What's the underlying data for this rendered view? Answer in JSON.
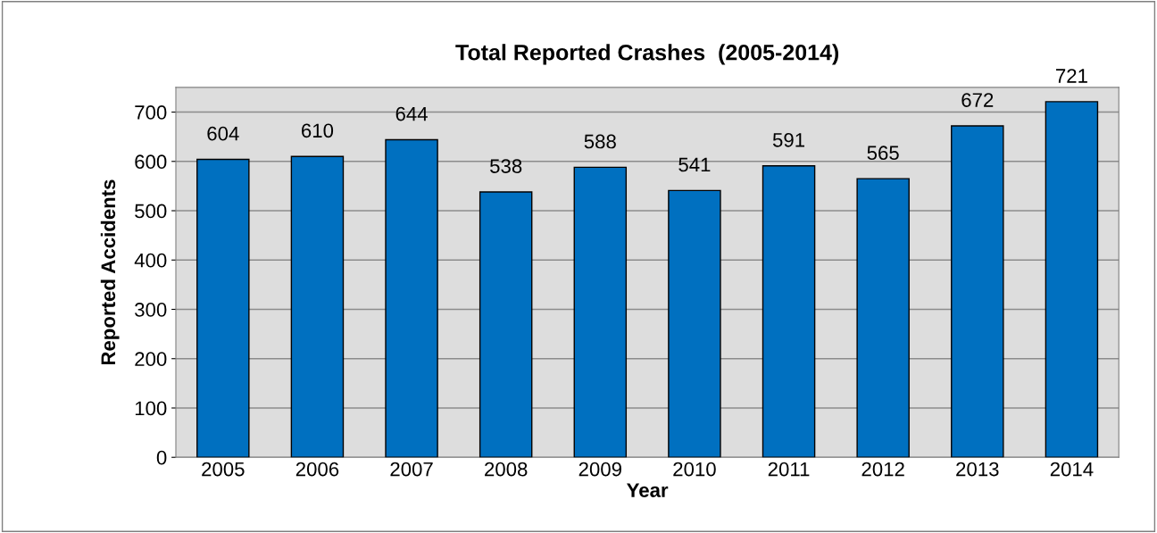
{
  "chart_data": {
    "type": "bar",
    "title": "Total Reported Crashes  (2005-2014)",
    "xlabel": "Year",
    "ylabel": "Reported Accidents",
    "categories": [
      "2005",
      "2006",
      "2007",
      "2008",
      "2009",
      "2010",
      "2011",
      "2012",
      "2013",
      "2014"
    ],
    "values": [
      604,
      610,
      644,
      538,
      588,
      541,
      591,
      565,
      672,
      721
    ],
    "color": "#0070c0",
    "ylim": [
      0,
      750
    ],
    "yticks": [
      0,
      100,
      200,
      300,
      400,
      500,
      600,
      700
    ],
    "grid": "y",
    "data_labels": true,
    "legend": false
  }
}
